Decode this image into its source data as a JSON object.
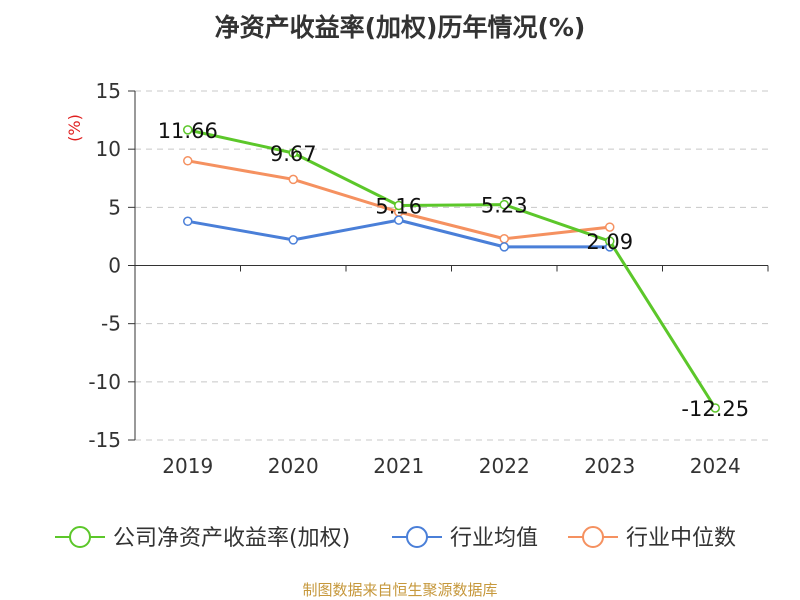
{
  "chart_data": {
    "type": "line",
    "title": "净资产收益率(加权)历年情况(%)",
    "ylabel": "(%)",
    "categories": [
      "2019",
      "2020",
      "2021",
      "2022",
      "2023",
      "2024"
    ],
    "ylim": [
      -15,
      15
    ],
    "yticks": [
      15,
      10,
      5,
      0,
      -5,
      -10,
      -15
    ],
    "grid": true,
    "legend_position": "bottom",
    "series": [
      {
        "name": "公司净资产收益率(加权)",
        "color": "#5cc72a",
        "values": [
          11.66,
          9.67,
          5.16,
          5.23,
          2.09,
          -12.25
        ],
        "labels": [
          "11.66",
          "9.67",
          "5.16",
          "5.23",
          "2.09",
          "-12.25"
        ]
      },
      {
        "name": "行业均值",
        "color": "#4a7fd8",
        "values": [
          3.8,
          2.2,
          3.9,
          1.6,
          1.6,
          null
        ]
      },
      {
        "name": "行业中位数",
        "color": "#f59160",
        "values": [
          9.0,
          7.4,
          4.6,
          2.3,
          3.3,
          null
        ]
      }
    ]
  },
  "footer": "制图数据来自恒生聚源数据库"
}
